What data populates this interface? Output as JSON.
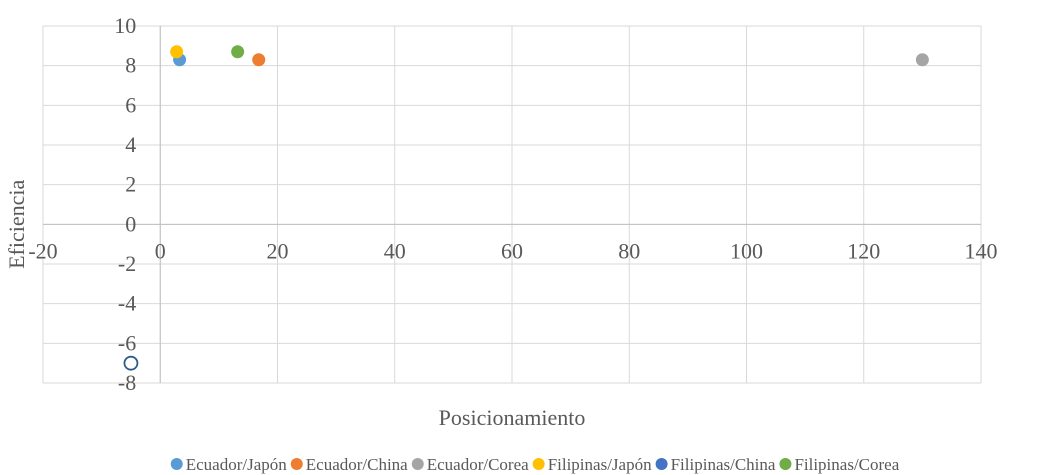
{
  "chart_data": {
    "type": "scatter",
    "title": "",
    "xlabel": "Posicionamiento",
    "ylabel": "Eficiencia",
    "xlim": [
      -20,
      140
    ],
    "ylim": [
      -8,
      10
    ],
    "x_ticks": [
      "-20",
      "0",
      "20",
      "40",
      "60",
      "80",
      "100",
      "120",
      "140"
    ],
    "y_ticks": [
      "10",
      "8",
      "6",
      "4",
      "2",
      "0",
      "-2",
      "-4",
      "-6",
      "-8"
    ],
    "grid": true,
    "legend_position": "bottom",
    "series": [
      {
        "name": "Ecuador/Japón",
        "color": "#5B9BD5",
        "points": [
          {
            "x": 3.3,
            "y": 8.3
          }
        ]
      },
      {
        "name": "Ecuador/China",
        "color": "#ED7D31",
        "points": [
          {
            "x": 16.8,
            "y": 8.3
          }
        ]
      },
      {
        "name": "Ecuador/Corea",
        "color": "#A5A5A5",
        "points": [
          {
            "x": 130,
            "y": 8.3
          }
        ]
      },
      {
        "name": "Filipinas/Japón",
        "color": "#FFC000",
        "points": [
          {
            "x": 2.8,
            "y": 8.7
          }
        ]
      },
      {
        "name": "Filipinas/China",
        "color": "#4472C4",
        "points": [
          {
            "x": -5,
            "y": -7
          }
        ],
        "hollow": true
      },
      {
        "name": "Filipinas/Corea",
        "color": "#70AD47",
        "points": [
          {
            "x": 13.2,
            "y": 8.7
          }
        ]
      }
    ]
  }
}
